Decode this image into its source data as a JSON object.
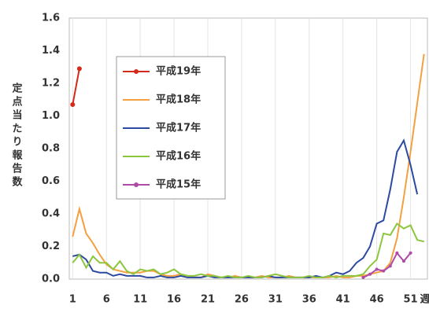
{
  "chart_data": {
    "type": "line",
    "y_label": "定点当たり報告数",
    "x_label": "週",
    "x": [
      1,
      2,
      3,
      4,
      5,
      6,
      7,
      8,
      9,
      10,
      11,
      12,
      13,
      14,
      15,
      16,
      17,
      18,
      19,
      20,
      21,
      22,
      23,
      24,
      25,
      26,
      27,
      28,
      29,
      30,
      31,
      32,
      33,
      34,
      35,
      36,
      37,
      38,
      39,
      40,
      41,
      42,
      43,
      44,
      45,
      46,
      47,
      48,
      49,
      50,
      51,
      52,
      53
    ],
    "xlim": [
      0.5,
      53.5
    ],
    "xticks": [
      1,
      6,
      11,
      16,
      21,
      26,
      31,
      36,
      41,
      46,
      51
    ],
    "ylim": [
      0,
      1.6
    ],
    "yticks": [
      {
        "value": 0,
        "label": "0.0"
      },
      {
        "value": 0.2,
        "label": "0.2"
      },
      {
        "value": 0.4,
        "label": "0.4"
      },
      {
        "value": 0.6,
        "label": "0.6"
      },
      {
        "value": 0.8,
        "label": "0.8"
      },
      {
        "value": 1.0,
        "label": "1.0"
      },
      {
        "value": 1.2,
        "label": "1.2"
      },
      {
        "value": 1.4,
        "label": "1.4"
      },
      {
        "value": 1.6,
        "label": "1.6"
      }
    ],
    "grid": true,
    "legend": "upper left",
    "series": [
      {
        "name": "平成19年",
        "color": "#d42a1a",
        "marker": true,
        "values": [
          1.07,
          1.29,
          null,
          null,
          null,
          null,
          null,
          null,
          null,
          null,
          null,
          null,
          null,
          null,
          null,
          null,
          null,
          null,
          null,
          null,
          null,
          null,
          null,
          null,
          null,
          null,
          null,
          null,
          null,
          null,
          null,
          null,
          null,
          null,
          null,
          null,
          null,
          null,
          null,
          null,
          null,
          null,
          null,
          null,
          null,
          null,
          null,
          null,
          null,
          null,
          null,
          null,
          null
        ]
      },
      {
        "name": "平成18年",
        "color": "#f5a040",
        "marker": false,
        "values": [
          0.26,
          0.43,
          0.28,
          0.22,
          0.15,
          0.09,
          0.06,
          0.05,
          0.04,
          0.04,
          0.04,
          0.05,
          0.05,
          0.03,
          0.02,
          0.02,
          0.03,
          0.02,
          0.01,
          0.01,
          0.03,
          0.02,
          0.01,
          0.01,
          0.02,
          0.01,
          0.01,
          0.01,
          0.02,
          0.01,
          0.01,
          0.01,
          0.02,
          0.01,
          0.01,
          0.01,
          0.01,
          0.01,
          0.01,
          0.02,
          0.01,
          0.01,
          0.02,
          0.02,
          0.03,
          0.04,
          0.05,
          0.1,
          0.25,
          0.5,
          0.78,
          1.08,
          1.38
        ]
      },
      {
        "name": "平成17年",
        "color": "#2c4aa0",
        "marker": false,
        "values": [
          0.14,
          0.15,
          0.12,
          0.05,
          0.04,
          0.04,
          0.02,
          0.03,
          0.02,
          0.02,
          0.02,
          0.01,
          0.01,
          0.02,
          0.01,
          0.01,
          0.02,
          0.01,
          0.01,
          0.01,
          0.02,
          0.01,
          0.01,
          0.01,
          0.01,
          0.01,
          0.01,
          0.01,
          0.01,
          0.02,
          0.01,
          0.01,
          0.01,
          0.01,
          0.01,
          0.01,
          0.02,
          0.01,
          0.02,
          0.04,
          0.03,
          0.05,
          0.1,
          0.13,
          0.2,
          0.34,
          0.36,
          0.55,
          0.78,
          0.85,
          0.7,
          0.52,
          null
        ]
      },
      {
        "name": "平成16年",
        "color": "#8cc63e",
        "marker": false,
        "values": [
          0.1,
          0.15,
          0.07,
          0.14,
          0.1,
          0.1,
          0.06,
          0.11,
          0.05,
          0.03,
          0.06,
          0.05,
          0.06,
          0.03,
          0.04,
          0.06,
          0.03,
          0.02,
          0.02,
          0.03,
          0.02,
          0.02,
          0.01,
          0.02,
          0.01,
          0.01,
          0.02,
          0.01,
          0.01,
          0.02,
          0.03,
          0.02,
          0.01,
          0.01,
          0.01,
          0.02,
          0.01,
          0.01,
          0.02,
          0.01,
          0.02,
          0.02,
          0.02,
          0.03,
          0.08,
          0.12,
          0.28,
          0.27,
          0.34,
          0.31,
          0.33,
          0.24,
          0.23
        ]
      },
      {
        "name": "平成15年",
        "color": "#b04aa8",
        "marker": true,
        "values": [
          null,
          null,
          null,
          null,
          null,
          null,
          null,
          null,
          null,
          null,
          null,
          null,
          null,
          null,
          null,
          null,
          null,
          null,
          null,
          null,
          null,
          null,
          null,
          null,
          null,
          null,
          null,
          null,
          null,
          null,
          null,
          null,
          null,
          null,
          null,
          null,
          null,
          null,
          null,
          null,
          null,
          null,
          null,
          0.01,
          0.03,
          0.06,
          0.05,
          0.08,
          0.16,
          0.11,
          0.16,
          null,
          null
        ]
      }
    ]
  }
}
